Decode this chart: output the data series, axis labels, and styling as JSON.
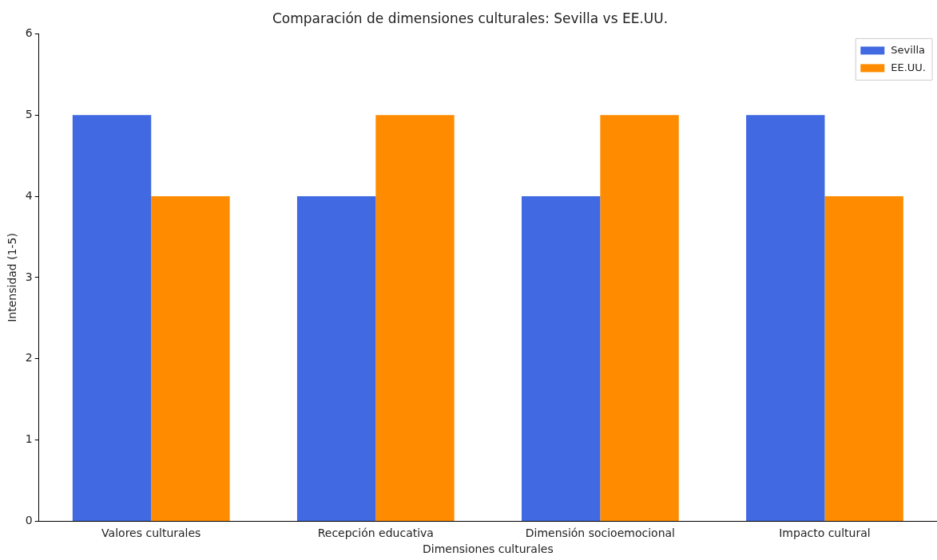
{
  "chart_data": {
    "type": "bar",
    "title": "Comparación de dimensiones culturales: Sevilla vs EE.UU.",
    "xlabel": "Dimensiones culturales",
    "ylabel": "Intensidad (1-5)",
    "categories": [
      "Valores culturales",
      "Recepción educativa",
      "Dimensión socioemocional",
      "Impacto cultural"
    ],
    "series": [
      {
        "name": "Sevilla",
        "color": "#4169e1",
        "values": [
          5,
          4,
          4,
          5
        ]
      },
      {
        "name": "EE.UU.",
        "color": "#ff8c00",
        "values": [
          4,
          5,
          5,
          4
        ]
      }
    ],
    "ylim": [
      0,
      6
    ],
    "yticks": [
      0,
      1,
      2,
      3,
      4,
      5,
      6
    ],
    "grid": false,
    "legend": "top right"
  }
}
